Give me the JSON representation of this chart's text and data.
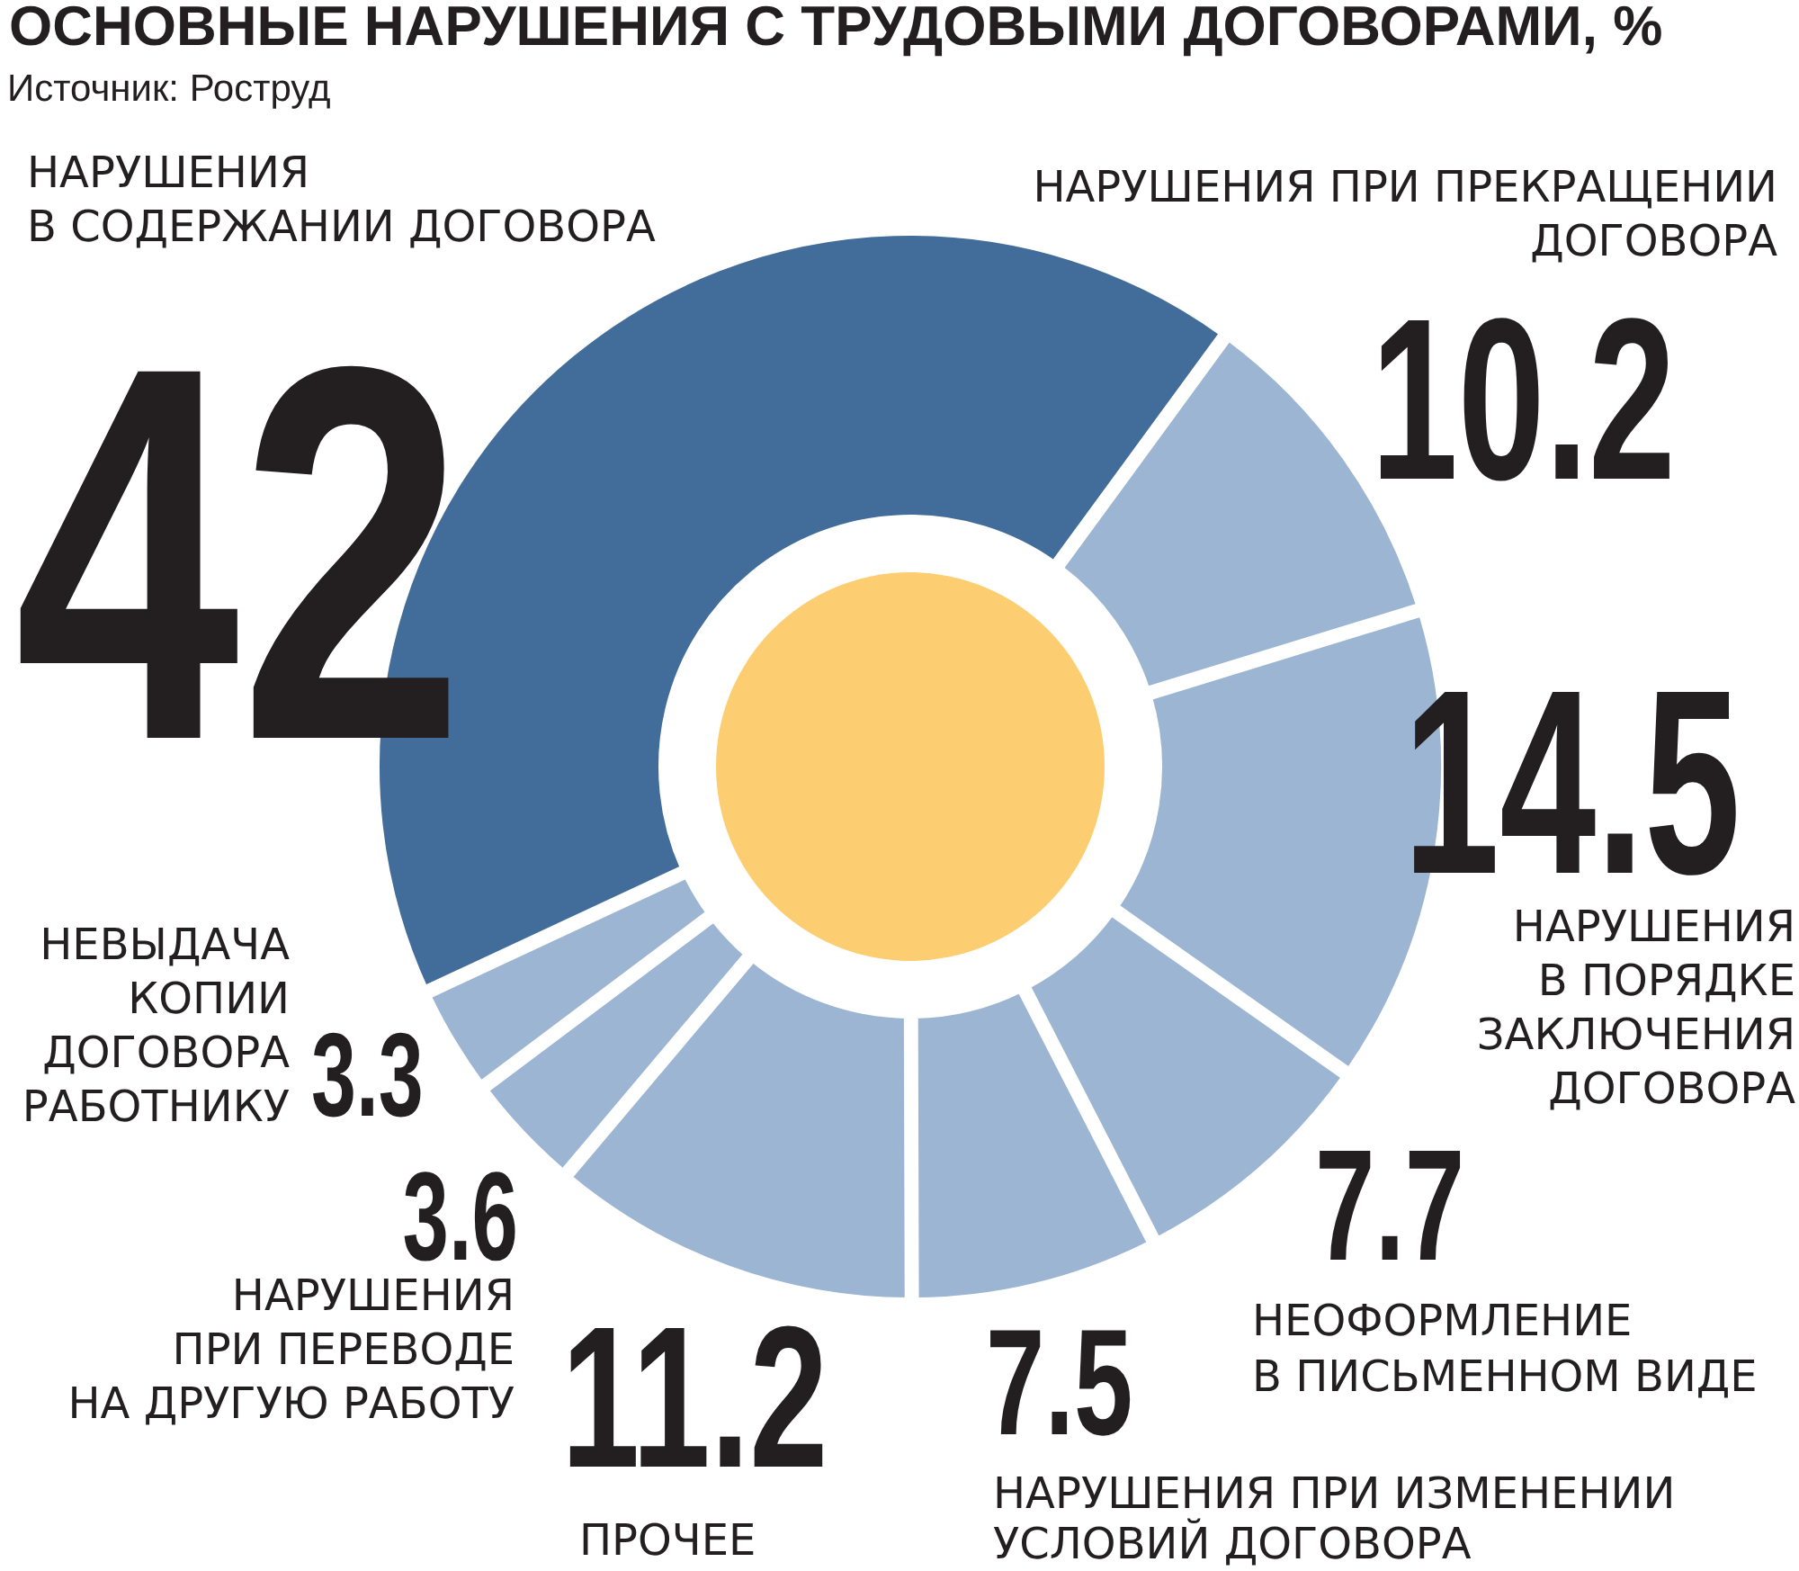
{
  "chart_data": {
    "type": "donut",
    "title": "ОСНОВНЫЕ НАРУШЕНИЯ С ТРУДОВЫМИ ДОГОВОРАМИ, %",
    "annotations": [
      "Источник: Роструд"
    ],
    "categories": [
      "НАРУШЕНИЯ В СОДЕРЖАНИИ ДОГОВОРА",
      "НАРУШЕНИЯ ПРИ ПРЕКРАЩЕНИИ ДОГОВОРА",
      "НАРУШЕНИЯ В ПОРЯДКЕ ЗАКЛЮЧЕНИЯ ДОГОВОРА",
      "НЕОФОРМЛЕНИЕ В ПИСЬМЕННОМ ВИДЕ",
      "НАРУШЕНИЯ ПРИ ИЗМЕНЕНИИ УСЛОВИЙ ДОГОВОРА",
      "ПРОЧЕЕ",
      "НАРУШЕНИЯ ПРИ ПЕРЕВОДЕ НА ДРУГУЮ РАБОТУ",
      "НЕВЫДАЧА КОПИИ ДОГОВОРА РАБОТНИКУ"
    ],
    "values": [
      42,
      10.2,
      14.5,
      7.7,
      7.5,
      11.2,
      3.6,
      3.3
    ],
    "colors": [
      "#426c9a",
      "#9bb5d3",
      "#9bb5d3",
      "#9bb5d3",
      "#9bb5d3",
      "#9bb5d3",
      "#9bb5d3",
      "#9bb5d3"
    ],
    "data_labels": true
  }
}
